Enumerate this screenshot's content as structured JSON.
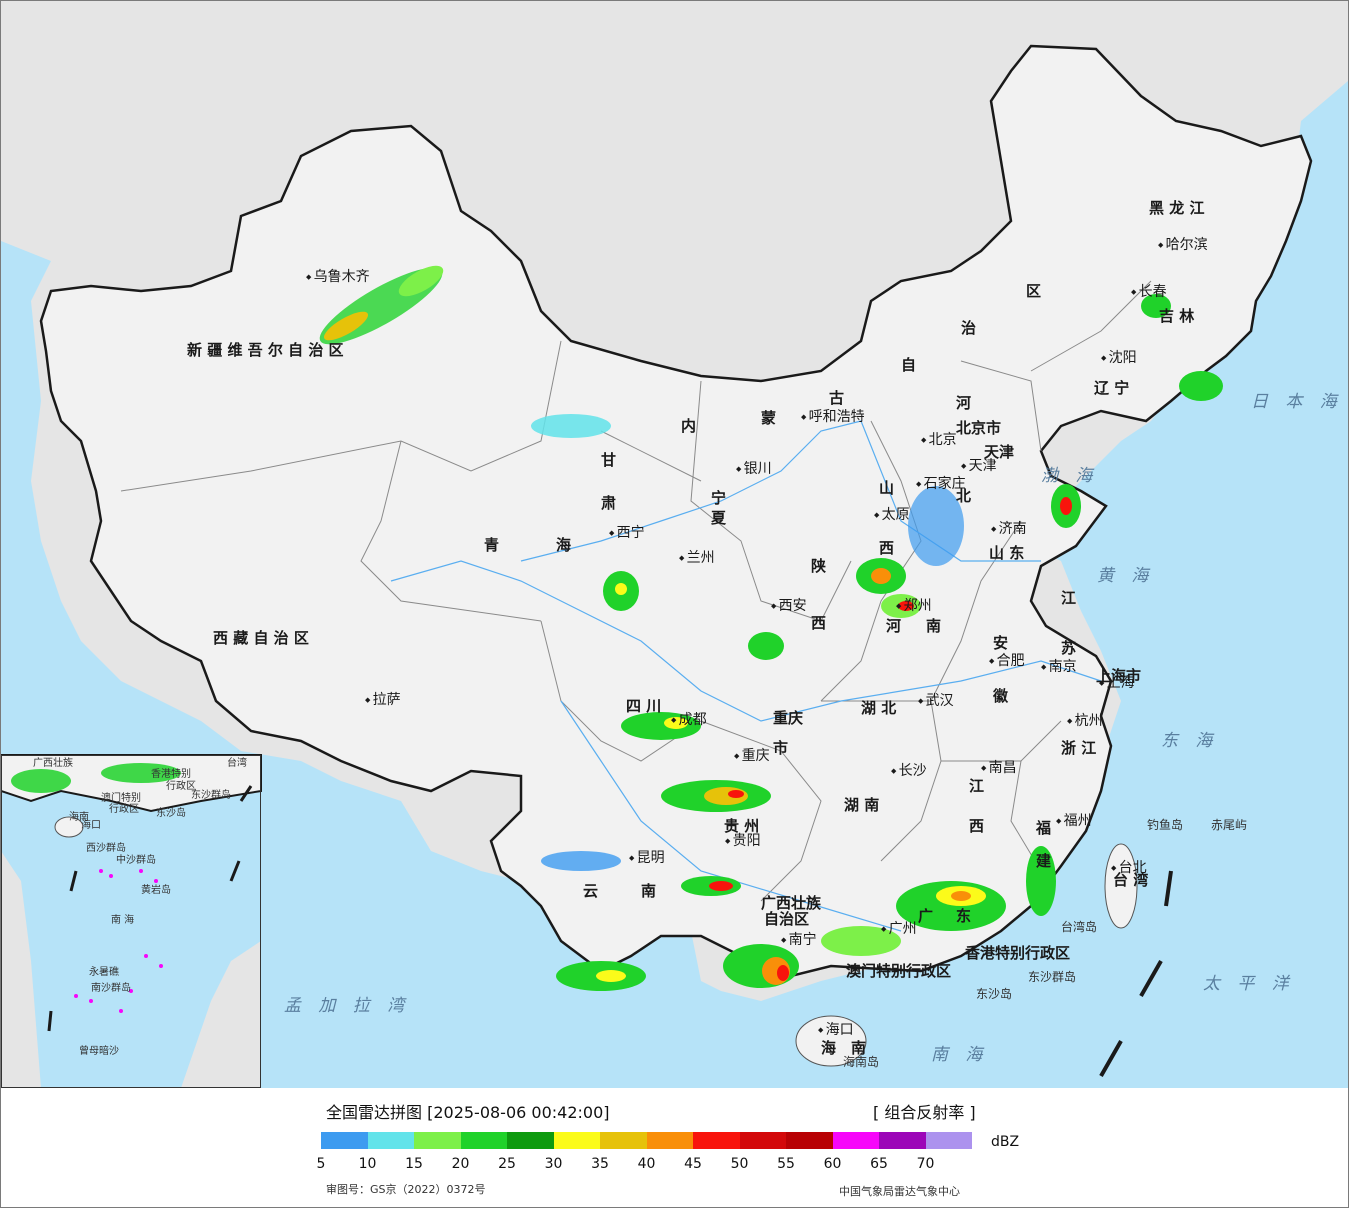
{
  "map": {
    "colors": {
      "ocean": "#b6e3f8",
      "land_china": "#f2f2f2",
      "land_other": "#e5e5e5",
      "border": "#1a1a1a",
      "province_line": "#8a8a8a",
      "river": "#5aaef0"
    },
    "provinces": [
      "黑 龙 江",
      "吉 林",
      "辽 宁",
      "区",
      "治",
      "自",
      "古",
      "蒙",
      "内",
      "河",
      "北",
      "山",
      "西",
      "山 东",
      "江",
      "苏",
      "安",
      "徽",
      "浙 江",
      "福",
      "建",
      "江",
      "西",
      "湖 南",
      "湖 北",
      "河",
      "南",
      "陕",
      "西",
      "甘",
      "肃",
      "宁",
      "夏",
      "青",
      "海",
      "四 川",
      "重庆",
      "市",
      "贵 州",
      "云",
      "南",
      "广西壮族",
      "自治区",
      "广",
      "东",
      "海",
      "南",
      "台 湾",
      "新 疆 维 吾 尔 自 治 区",
      "西 藏 自 治 区",
      "上海市",
      "北京市",
      "天津",
      "香港特别行政区",
      "澳门特别行政区"
    ],
    "cities": [
      "哈尔滨",
      "长春",
      "沈阳",
      "北京",
      "天津",
      "石家庄",
      "太原",
      "济南",
      "呼和浩特",
      "银川",
      "西宁",
      "兰州",
      "西安",
      "郑州",
      "南京",
      "上海",
      "合肥",
      "武汉",
      "杭州",
      "南昌",
      "长沙",
      "福州",
      "台北",
      "重庆",
      "成都",
      "贵阳",
      "昆明",
      "南宁",
      "广州",
      "海口",
      "拉萨",
      "乌鲁木齐"
    ],
    "seas": [
      "日 本 海",
      "渤 海",
      "黄 海",
      "东 海",
      "太 平 洋",
      "南 海",
      "孟 加 拉 湾"
    ],
    "islands": [
      "钓鱼岛",
      "赤尾屿",
      "台湾岛",
      "东沙群岛",
      "东沙岛",
      "海南岛"
    ],
    "inset": {
      "labels": [
        "广西壮族",
        "香港特别",
        "行政区",
        "澳门特别",
        "行政区",
        "台湾",
        "东沙群岛",
        "东沙岛",
        "海南",
        "西沙群岛",
        "中沙群岛",
        "黄岩岛",
        "南 海",
        "永暑礁",
        "南沙群岛",
        "曾母暗沙",
        "海口"
      ]
    }
  },
  "legend": {
    "title": "全国雷达拼图 [2025-08-06 00:42:00]",
    "product": "[ 组合反射率 ]",
    "unit": "dBZ",
    "ticks": [
      "5",
      "10",
      "15",
      "20",
      "25",
      "30",
      "35",
      "40",
      "45",
      "50",
      "55",
      "60",
      "65",
      "70"
    ],
    "colors": [
      "#3d9bf0",
      "#62e3ea",
      "#7df049",
      "#20d22a",
      "#0e9a0f",
      "#fbfb1a",
      "#e6c20a",
      "#f98f09",
      "#f8140c",
      "#d3080a",
      "#b80104",
      "#f706fa",
      "#9c06b8",
      "#ac92ee"
    ],
    "review_no": "审图号：GS京（2022）0372号",
    "source": "中国气象局雷达气象中心"
  }
}
